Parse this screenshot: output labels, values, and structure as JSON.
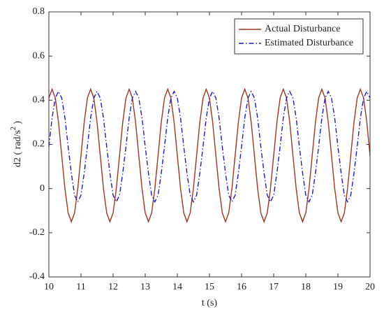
{
  "chart_data": {
    "type": "line",
    "xlabel": "t (s)",
    "ylabel": [
      "d2 ( rad/s",
      "2",
      " )"
    ],
    "xlim": [
      10,
      20
    ],
    "xticks": [
      10,
      11,
      12,
      13,
      14,
      15,
      16,
      17,
      18,
      19,
      20
    ],
    "ylim": [
      -0.4,
      0.8
    ],
    "yticks": [
      -0.4,
      -0.2,
      0,
      0.2,
      0.4,
      0.6,
      0.8
    ],
    "legend": "upper right",
    "x": [
      10,
      10.1,
      10.2,
      10.3,
      10.4,
      10.5,
      10.6,
      10.7,
      10.8,
      10.9,
      11,
      11.1,
      11.2,
      11.3,
      11.4,
      11.5,
      11.6,
      11.7,
      11.8,
      11.9,
      12,
      12.1,
      12.2,
      12.3,
      12.4,
      12.5,
      12.6,
      12.7,
      12.8,
      12.9,
      13,
      13.1,
      13.2,
      13.3,
      13.4,
      13.5,
      13.6,
      13.7,
      13.8,
      13.9,
      14,
      14.1,
      14.2,
      14.3,
      14.4,
      14.5,
      14.6,
      14.7,
      14.8,
      14.9,
      15,
      15.1,
      15.2,
      15.3,
      15.4,
      15.5,
      15.6,
      15.7,
      15.8,
      15.9,
      16,
      16.1,
      16.2,
      16.3,
      16.4,
      16.5,
      16.6,
      16.7,
      16.8,
      16.9,
      17,
      17.1,
      17.2,
      17.3,
      17.4,
      17.5,
      17.6,
      17.7,
      17.8,
      17.9,
      18,
      18.1,
      18.2,
      18.3,
      18.4,
      18.5,
      18.6,
      18.7,
      18.8,
      18.9,
      19,
      19.1,
      19.2,
      19.3,
      19.4,
      19.5,
      19.6,
      19.7,
      19.8,
      19.9,
      20
    ],
    "series": [
      {
        "name": "Actual Disturbance",
        "color": "#a0341f",
        "dash": "solid",
        "values": [
          0.41,
          0.45,
          0.41,
          0.3,
          0.15,
          0.0,
          -0.11,
          -0.15,
          -0.11,
          0.0,
          0.15,
          0.3,
          0.41,
          0.45,
          0.41,
          0.3,
          0.15,
          0.0,
          -0.11,
          -0.15,
          -0.11,
          0.0,
          0.15,
          0.3,
          0.41,
          0.45,
          0.41,
          0.3,
          0.15,
          0.0,
          -0.11,
          -0.15,
          -0.11,
          0.0,
          0.15,
          0.3,
          0.41,
          0.45,
          0.41,
          0.3,
          0.15,
          0.0,
          -0.11,
          -0.15,
          -0.11,
          0.0,
          0.15,
          0.3,
          0.41,
          0.45,
          0.41,
          0.3,
          0.15,
          0.0,
          -0.11,
          -0.15,
          -0.11,
          0.0,
          0.15,
          0.3,
          0.41,
          0.45,
          0.41,
          0.3,
          0.15,
          0.0,
          -0.11,
          -0.15,
          -0.11,
          0.0,
          0.15,
          0.3,
          0.41,
          0.45,
          0.41,
          0.3,
          0.15,
          0.0,
          -0.11,
          -0.15,
          -0.11,
          0.0,
          0.15,
          0.3,
          0.41,
          0.45,
          0.41,
          0.3,
          0.15,
          0.0,
          -0.11,
          -0.15,
          -0.11,
          0.0,
          0.15,
          0.3,
          0.41,
          0.45,
          0.41,
          0.3,
          0.15
        ]
      },
      {
        "name": "Estimated Disturbance",
        "color": "#1a1ad4",
        "dash": "dashdot",
        "values": [
          0.19,
          0.32,
          0.41,
          0.44,
          0.41,
          0.32,
          0.19,
          0.07,
          -0.03,
          -0.06,
          -0.03,
          0.07,
          0.19,
          0.32,
          0.41,
          0.44,
          0.41,
          0.32,
          0.19,
          0.07,
          -0.03,
          -0.06,
          -0.03,
          0.07,
          0.19,
          0.32,
          0.41,
          0.44,
          0.41,
          0.32,
          0.19,
          0.07,
          -0.03,
          -0.06,
          -0.03,
          0.07,
          0.19,
          0.32,
          0.41,
          0.44,
          0.41,
          0.32,
          0.19,
          0.07,
          -0.03,
          -0.06,
          -0.03,
          0.07,
          0.19,
          0.32,
          0.41,
          0.44,
          0.41,
          0.32,
          0.19,
          0.07,
          -0.03,
          -0.06,
          -0.03,
          0.07,
          0.19,
          0.32,
          0.41,
          0.44,
          0.41,
          0.32,
          0.19,
          0.07,
          -0.03,
          -0.06,
          -0.03,
          0.07,
          0.19,
          0.32,
          0.41,
          0.44,
          0.41,
          0.32,
          0.19,
          0.07,
          -0.03,
          -0.06,
          -0.03,
          0.07,
          0.19,
          0.32,
          0.41,
          0.44,
          0.41,
          0.32,
          0.19,
          0.07,
          -0.03,
          -0.06,
          -0.03,
          0.07,
          0.19,
          0.32,
          0.41,
          0.44,
          0.41
        ]
      }
    ]
  }
}
